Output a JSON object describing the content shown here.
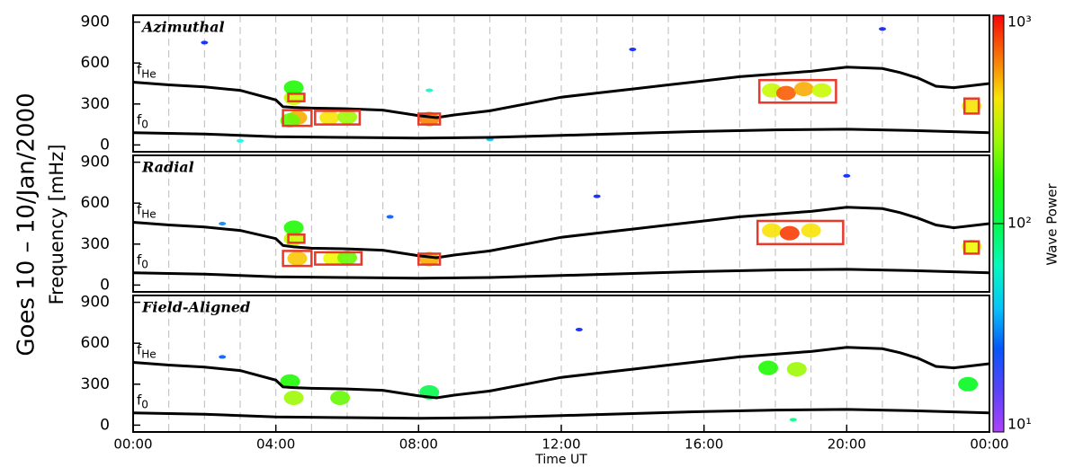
{
  "chart_data": {
    "type": "spectrogram",
    "title": "Goes 10 – 10/Jan/2000",
    "ylabel": "Frequency [mHz]",
    "xlabel": "Time UT",
    "xlim": [
      0,
      24
    ],
    "xticks": [
      {
        "value": 0,
        "label": "00:00"
      },
      {
        "value": 4,
        "label": "04:00"
      },
      {
        "value": 8,
        "label": "08:00"
      },
      {
        "value": 12,
        "label": "12:00"
      },
      {
        "value": 16,
        "label": "16:00"
      },
      {
        "value": 20,
        "label": "20:00"
      },
      {
        "value": 24,
        "label": "00:00"
      }
    ],
    "xgrid": [
      1,
      2,
      3,
      4,
      5,
      6,
      7,
      8,
      9,
      10,
      11,
      12,
      13,
      14,
      15,
      16,
      17,
      18,
      19,
      20,
      21,
      22,
      23
    ],
    "ylim": [
      -50,
      950
    ],
    "yticks": [
      0,
      300,
      600,
      900
    ],
    "colorbar": {
      "label": "Wave Power",
      "scale": "log",
      "colormap": "rainbow",
      "lim": [
        10,
        1000
      ],
      "ticks": [
        {
          "value": 10,
          "label": "10¹"
        },
        {
          "value": 100,
          "label": "10²"
        },
        {
          "value": 1000,
          "label": "10³"
        }
      ]
    },
    "panels": [
      {
        "title": "Azimuthal",
        "series": [
          {
            "name": "f",
            "subscript": "He",
            "color": "#000000",
            "x": [
              0,
              1,
              2,
              3,
              4,
              4.2,
              4.5,
              5,
              6,
              7,
              8,
              8.5,
              9,
              10,
              11,
              12,
              13,
              14,
              15,
              16,
              17,
              18,
              19,
              20,
              21,
              21.5,
              22,
              22.5,
              23,
              24
            ],
            "values": [
              460,
              440,
              425,
              400,
              330,
              280,
              275,
              270,
              265,
              255,
              215,
              200,
              220,
              250,
              300,
              350,
              380,
              410,
              440,
              470,
              500,
              520,
              540,
              570,
              560,
              530,
              490,
              430,
              420,
              450
            ]
          },
          {
            "name": "f",
            "subscript": "0",
            "color": "#000000",
            "x": [
              0,
              2,
              4,
              6,
              8,
              10,
              12,
              14,
              16,
              18,
              20,
              22,
              24
            ],
            "values": [
              90,
              80,
              60,
              55,
              50,
              55,
              70,
              85,
              100,
              110,
              115,
              105,
              90
            ]
          }
        ],
        "regions": [
          {
            "x": [
              4.35,
              4.8
            ],
            "y": [
              320,
              375
            ]
          },
          {
            "x": [
              4.2,
              5.0
            ],
            "y": [
              140,
              255
            ]
          },
          {
            "x": [
              5.1,
              6.35
            ],
            "y": [
              150,
              250
            ]
          },
          {
            "x": [
              8.0,
              8.6
            ],
            "y": [
              150,
              230
            ]
          },
          {
            "x": [
              17.55,
              19.7
            ],
            "y": [
              310,
              475
            ]
          },
          {
            "x": [
              23.3,
              23.7
            ],
            "y": [
              230,
              340
            ]
          }
        ],
        "patches": [
          {
            "x": 4.5,
            "y": 345,
            "power": 300
          },
          {
            "x": 4.5,
            "y": 420,
            "power": 150
          },
          {
            "x": 4.6,
            "y": 200,
            "power": 500
          },
          {
            "x": 4.4,
            "y": 180,
            "power": 200
          },
          {
            "x": 5.5,
            "y": 200,
            "power": 400
          },
          {
            "x": 6.0,
            "y": 205,
            "power": 250
          },
          {
            "x": 8.3,
            "y": 190,
            "power": 600
          },
          {
            "x": 8.3,
            "y": 400,
            "power": 60
          },
          {
            "x": 17.9,
            "y": 400,
            "power": 300
          },
          {
            "x": 18.3,
            "y": 380,
            "power": 700
          },
          {
            "x": 18.8,
            "y": 410,
            "power": 500
          },
          {
            "x": 19.3,
            "y": 400,
            "power": 300
          },
          {
            "x": 23.5,
            "y": 285,
            "power": 400
          },
          {
            "x": 2.0,
            "y": 750,
            "power": 20
          },
          {
            "x": 10.0,
            "y": 40,
            "power": 40
          },
          {
            "x": 14.0,
            "y": 700,
            "power": 20
          },
          {
            "x": 21.0,
            "y": 850,
            "power": 20
          },
          {
            "x": 3.0,
            "y": 30,
            "power": 50
          }
        ]
      },
      {
        "title": "Radial",
        "series": [
          {
            "name": "f",
            "subscript": "He",
            "color": "#000000",
            "x": [
              0,
              1,
              2,
              3,
              4,
              4.2,
              4.5,
              5,
              6,
              7,
              8,
              8.5,
              9,
              10,
              11,
              12,
              13,
              14,
              15,
              16,
              17,
              18,
              19,
              20,
              21,
              21.5,
              22,
              22.5,
              23,
              24
            ],
            "values": [
              460,
              440,
              425,
              400,
              340,
              290,
              280,
              270,
              265,
              255,
              215,
              200,
              220,
              250,
              300,
              350,
              380,
              410,
              440,
              470,
              500,
              520,
              540,
              570,
              560,
              530,
              490,
              440,
              420,
              450
            ]
          },
          {
            "name": "f",
            "subscript": "0",
            "color": "#000000",
            "x": [
              0,
              2,
              4,
              6,
              8,
              10,
              12,
              14,
              16,
              18,
              20,
              22,
              24
            ],
            "values": [
              90,
              80,
              60,
              55,
              50,
              55,
              70,
              85,
              100,
              110,
              115,
              105,
              90
            ]
          }
        ],
        "regions": [
          {
            "x": [
              4.35,
              4.8
            ],
            "y": [
              310,
              370
            ]
          },
          {
            "x": [
              4.2,
              5.0
            ],
            "y": [
              140,
              250
            ]
          },
          {
            "x": [
              5.1,
              6.4
            ],
            "y": [
              150,
              240
            ]
          },
          {
            "x": [
              8.0,
              8.6
            ],
            "y": [
              150,
              230
            ]
          },
          {
            "x": [
              17.5,
              19.9
            ],
            "y": [
              300,
              470
            ]
          },
          {
            "x": [
              23.3,
              23.7
            ],
            "y": [
              230,
              320
            ]
          }
        ],
        "patches": [
          {
            "x": 4.5,
            "y": 340,
            "power": 300
          },
          {
            "x": 4.5,
            "y": 420,
            "power": 150
          },
          {
            "x": 4.6,
            "y": 195,
            "power": 450
          },
          {
            "x": 5.6,
            "y": 195,
            "power": 350
          },
          {
            "x": 6.0,
            "y": 200,
            "power": 200
          },
          {
            "x": 8.3,
            "y": 190,
            "power": 500
          },
          {
            "x": 17.9,
            "y": 400,
            "power": 400
          },
          {
            "x": 18.4,
            "y": 380,
            "power": 800
          },
          {
            "x": 19.0,
            "y": 400,
            "power": 400
          },
          {
            "x": 23.5,
            "y": 280,
            "power": 350
          },
          {
            "x": 2.5,
            "y": 450,
            "power": 30
          },
          {
            "x": 7.2,
            "y": 500,
            "power": 25
          },
          {
            "x": 13.0,
            "y": 650,
            "power": 20
          },
          {
            "x": 20.0,
            "y": 800,
            "power": 20
          }
        ]
      },
      {
        "title": "Field-Aligned",
        "series": [
          {
            "name": "f",
            "subscript": "He",
            "color": "#000000",
            "x": [
              0,
              1,
              2,
              3,
              4,
              4.2,
              4.5,
              5,
              6,
              7,
              8,
              8.5,
              9,
              10,
              11,
              12,
              13,
              14,
              15,
              16,
              17,
              18,
              19,
              20,
              21,
              21.5,
              22,
              22.5,
              23,
              24
            ],
            "values": [
              460,
              440,
              425,
              400,
              330,
              280,
              275,
              270,
              265,
              255,
              215,
              200,
              220,
              250,
              300,
              350,
              380,
              410,
              440,
              470,
              500,
              520,
              540,
              570,
              560,
              530,
              490,
              430,
              420,
              450
            ]
          },
          {
            "name": "f",
            "subscript": "0",
            "color": "#000000",
            "x": [
              0,
              2,
              4,
              6,
              8,
              10,
              12,
              14,
              16,
              18,
              20,
              22,
              24
            ],
            "values": [
              90,
              80,
              60,
              55,
              50,
              55,
              70,
              85,
              100,
              110,
              115,
              105,
              90
            ]
          }
        ],
        "regions": [],
        "patches": [
          {
            "x": 4.4,
            "y": 320,
            "power": 150
          },
          {
            "x": 4.5,
            "y": 200,
            "power": 250
          },
          {
            "x": 5.8,
            "y": 200,
            "power": 200
          },
          {
            "x": 8.3,
            "y": 240,
            "power": 100
          },
          {
            "x": 17.8,
            "y": 420,
            "power": 150
          },
          {
            "x": 18.6,
            "y": 410,
            "power": 250
          },
          {
            "x": 23.4,
            "y": 300,
            "power": 120
          },
          {
            "x": 18.5,
            "y": 40,
            "power": 80
          },
          {
            "x": 2.5,
            "y": 500,
            "power": 25
          },
          {
            "x": 12.5,
            "y": 700,
            "power": 20
          }
        ]
      }
    ]
  }
}
